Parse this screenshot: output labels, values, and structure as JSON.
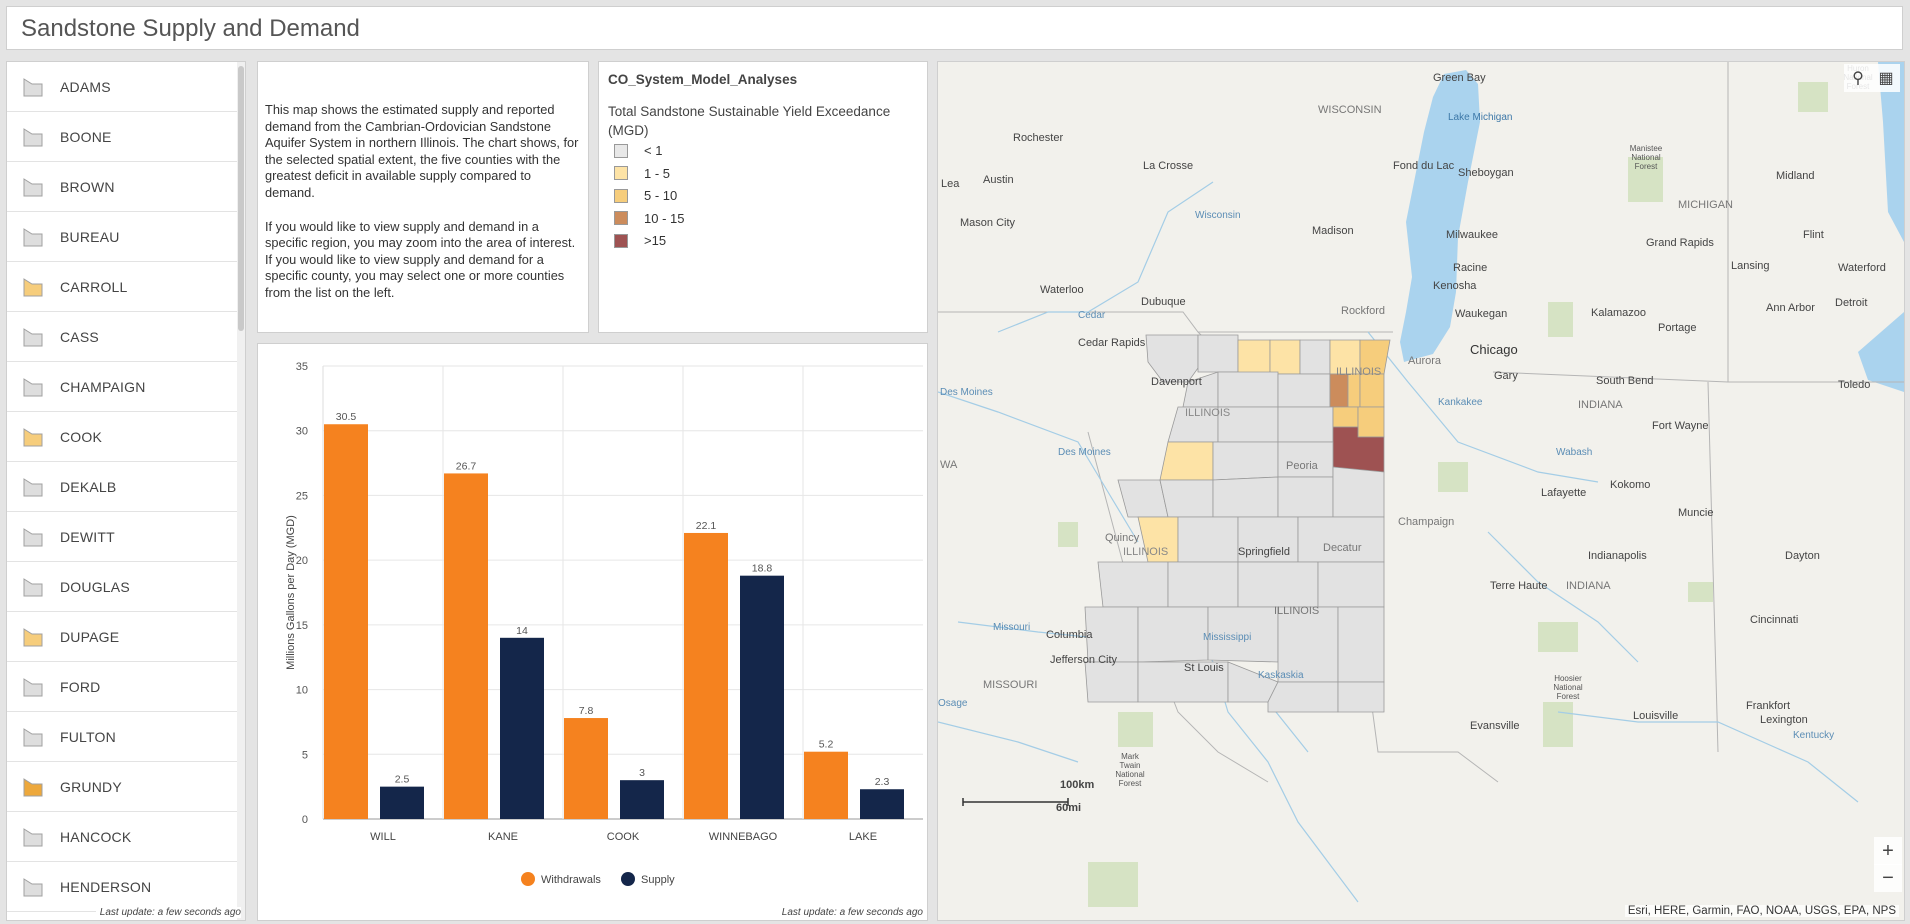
{
  "header": {
    "title": "Sandstone Supply and Demand"
  },
  "county_list": {
    "items": [
      {
        "name": "ADAMS",
        "color": "#dedede"
      },
      {
        "name": "BOONE",
        "color": "#dedede"
      },
      {
        "name": "BROWN",
        "color": "#dedede"
      },
      {
        "name": "BUREAU",
        "color": "#dedede"
      },
      {
        "name": "CARROLL",
        "color": "#f6cd7c"
      },
      {
        "name": "CASS",
        "color": "#dedede"
      },
      {
        "name": "CHAMPAIGN",
        "color": "#dedede"
      },
      {
        "name": "COOK",
        "color": "#f6cd7c"
      },
      {
        "name": "DEKALB",
        "color": "#dedede"
      },
      {
        "name": "DEWITT",
        "color": "#dedede"
      },
      {
        "name": "DOUGLAS",
        "color": "#dedede"
      },
      {
        "name": "DUPAGE",
        "color": "#f6cd7c"
      },
      {
        "name": "FORD",
        "color": "#dedede"
      },
      {
        "name": "FULTON",
        "color": "#dedede"
      },
      {
        "name": "GRUNDY",
        "color": "#eda83c"
      },
      {
        "name": "HANCOCK",
        "color": "#dedede"
      },
      {
        "name": "HENDERSON",
        "color": "#dedede"
      }
    ],
    "last_update": "Last update: a few seconds ago"
  },
  "description": {
    "paragraph1": "This map shows the estimated supply and reported demand from the Cambrian-Ordovician Sandstone Aquifer System in northern Illinois. The chart shows, for the selected spatial extent, the five counties with the greatest deficit in available supply compared to demand.",
    "paragraph2": "If you would like to view supply and demand in a specific region, you may zoom into the area of interest. If you would like to view supply and demand for a specific county, you may select one or more counties from the list on the left."
  },
  "legend": {
    "title": "CO_System_Model_Analyses",
    "subtitle": "Total Sandstone Sustainable Yield Exceedance (MGD)",
    "items": [
      {
        "label": "< 1",
        "color": "#e8e8e8"
      },
      {
        "label": "1 - 5",
        "color": "#fde3a6"
      },
      {
        "label": "5 - 10",
        "color": "#f6cd7c"
      },
      {
        "label": "10 - 15",
        "color": "#cc8c5c"
      },
      {
        "label": ">15",
        "color": "#9e5252"
      }
    ]
  },
  "chart_data": {
    "type": "bar",
    "categories": [
      "WILL",
      "KANE",
      "COOK",
      "WINNEBAGO",
      "LAKE"
    ],
    "series": [
      {
        "name": "Withdrawals",
        "color": "#f5821f",
        "values": [
          30.5,
          26.7,
          7.8,
          22.1,
          5.2
        ]
      },
      {
        "name": "Supply",
        "color": "#14264a",
        "values": [
          2.5,
          14,
          3,
          18.8,
          2.3
        ]
      }
    ],
    "ylabel": "Millions Gallons per Day (MGD)",
    "ylim": [
      0,
      35
    ],
    "yticks": [
      0,
      5,
      10,
      15,
      20,
      25,
      30,
      35
    ],
    "grid": true,
    "legend_position": "bottom",
    "last_update": "Last update: a few seconds ago"
  },
  "map": {
    "labels": {
      "green_bay": "Green Bay",
      "huron": "Huron National Forest",
      "lake_michigan": "Lake Michigan",
      "wisconsin": "WISCONSIN",
      "rochester": "Rochester",
      "la_crosse": "La Crosse",
      "fond_du_lac": "Fond du Lac",
      "sheboygan": "Sheboygan",
      "midland": "Midland",
      "manistee": "Manistee National Forest",
      "lea": "Lea",
      "austin": "Austin",
      "michigan": "MICHIGAN",
      "mason_city": "Mason City",
      "wisconsin_river": "Wisconsin",
      "madison": "Madison",
      "milwaukee": "Milwaukee",
      "grand_rapids": "Grand Rapids",
      "flint": "Flint",
      "racine": "Racine",
      "lansing": "Lansing",
      "waterford": "Waterford",
      "waterloo": "Waterloo",
      "dubuque": "Dubuque",
      "kenosha": "Kenosha",
      "rockford": "Rockford",
      "waukegan": "Waukegan",
      "kalamazoo": "Kalamazoo",
      "ann_arbor": "Ann Arbor",
      "detroit": "Detroit",
      "cedar": "Cedar",
      "cedar_rapids": "Cedar Rapids",
      "portage": "Portage",
      "chicago": "Chicago",
      "aurora": "Aurora",
      "illinois1": "ILLINOIS",
      "davenport": "Davenport",
      "gary": "Gary",
      "south_bend": "South Bend",
      "toledo": "Toledo",
      "des_moines_river": "Des Moines",
      "illinois2": "ILLINOIS",
      "kankakee": "Kankakee",
      "indiana1": "INDIANA",
      "fort_wayne": "Fort Wayne",
      "wa": "WA",
      "des_moines2": "Des Moines",
      "peoria": "Peoria",
      "wabash": "Wabash",
      "lafayette": "Lafayette",
      "kokomo": "Kokomo",
      "muncie": "Muncie",
      "champaign": "Champaign",
      "quincy": "Quincy",
      "illinois3": "ILLINOIS",
      "springfield": "Springfield",
      "decatur": "Decatur",
      "indianapolis": "Indianapolis",
      "dayton": "Dayton",
      "terre_haute": "Terre Haute",
      "indiana2": "INDIANA",
      "illinois4": "ILLINOIS",
      "columbia": "Columbia",
      "missouri_river": "Missouri",
      "mississippi": "Mississippi",
      "cincinnati": "Cincinnati",
      "jefferson_city": "Jefferson City",
      "st_louis": "St Louis",
      "missouri": "MISSOURI",
      "kaskaskia": "Kaskaskia",
      "hoosier": "Hoosier National Forest",
      "frankfort": "Frankfort",
      "louisville": "Louisville",
      "lexington": "Lexington",
      "osage": "Osage",
      "evansville": "Evansville",
      "kentucky": "Kentucky",
      "mark_twain": "Mark Twain National Forest",
      "scale_km": "100km",
      "scale_mi": "60mi"
    },
    "attribution": "Esri, HERE, Garmin, FAO, NOAA, USGS, EPA, NPS",
    "icons": {
      "search": "search-icon",
      "qr": "qr-code-icon"
    },
    "zoom_in": "+",
    "zoom_out": "−"
  }
}
